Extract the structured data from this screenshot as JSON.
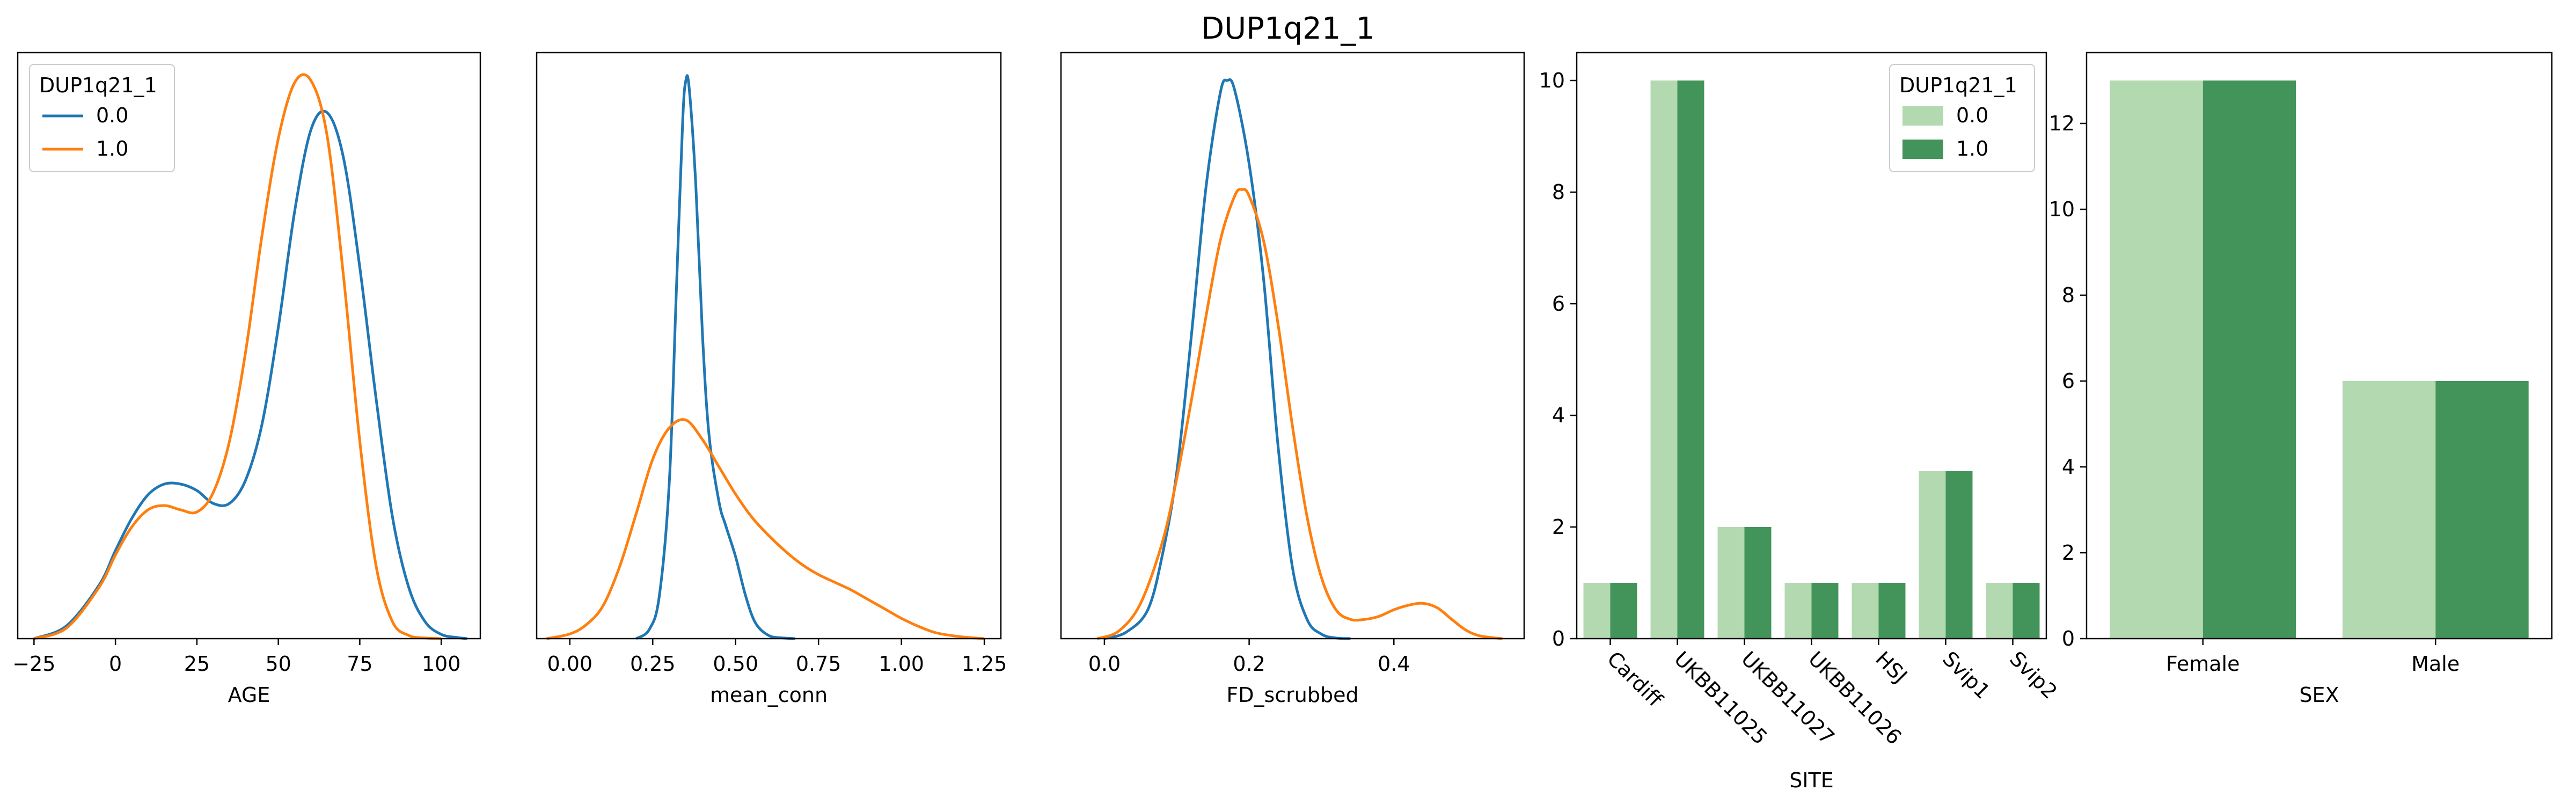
{
  "figure": {
    "title": "DUP1q21_1"
  },
  "colors": {
    "group0": "#1f77b4",
    "group1": "#ff7f0e",
    "bar0": "#b3d9b0",
    "bar1": "#43945a"
  },
  "chart_data": [
    {
      "type": "line",
      "subtype": "kde",
      "title": "",
      "xlabel": "AGE",
      "ylabel": "",
      "xlim": [
        -30,
        112
      ],
      "xticks": [
        -25,
        0,
        25,
        50,
        75,
        100
      ],
      "tick_labels": [
        "−25",
        "0",
        "25",
        "50",
        "75",
        "100"
      ],
      "show_yaxis": false,
      "legend": {
        "title": "DUP1q21_1",
        "position": "upper left",
        "entries": [
          "0.0",
          "1.0"
        ]
      },
      "series": [
        {
          "name": "0.0",
          "color": "#1f77b4",
          "x": [
            -25,
            -15,
            -5,
            0,
            5,
            10,
            15,
            20,
            25,
            30,
            35,
            40,
            45,
            50,
            55,
            60,
            65,
            70,
            75,
            80,
            85,
            90,
            95,
            100,
            105,
            108
          ],
          "y": [
            0.0,
            0.06,
            0.25,
            0.41,
            0.56,
            0.67,
            0.72,
            0.72,
            0.69,
            0.63,
            0.63,
            0.74,
            1.0,
            1.45,
            1.99,
            2.37,
            2.45,
            2.24,
            1.73,
            1.12,
            0.57,
            0.24,
            0.08,
            0.02,
            0.005,
            0.0
          ]
        },
        {
          "name": "1.0",
          "color": "#ff7f0e",
          "x": [
            -25,
            -15,
            -5,
            0,
            5,
            10,
            15,
            20,
            25,
            30,
            35,
            40,
            45,
            50,
            55,
            60,
            65,
            70,
            75,
            80,
            85,
            90,
            95,
            100
          ],
          "y": [
            0.0,
            0.05,
            0.24,
            0.39,
            0.52,
            0.6,
            0.62,
            0.6,
            0.59,
            0.68,
            0.92,
            1.34,
            1.88,
            2.33,
            2.59,
            2.6,
            2.34,
            1.69,
            0.92,
            0.34,
            0.08,
            0.015,
            0.003,
            0.0
          ]
        }
      ]
    },
    {
      "type": "line",
      "subtype": "kde",
      "title": "",
      "xlabel": "mean_conn",
      "ylabel": "",
      "xlim": [
        -0.1,
        1.3
      ],
      "xticks": [
        0.0,
        0.25,
        0.5,
        0.75,
        1.0,
        1.25
      ],
      "tick_labels": [
        "0.00",
        "0.25",
        "0.50",
        "0.75",
        "1.00",
        "1.25"
      ],
      "show_yaxis": false,
      "series": [
        {
          "name": "0.0",
          "color": "#1f77b4",
          "x": [
            0.2,
            0.24,
            0.27,
            0.3,
            0.32,
            0.34,
            0.35,
            0.36,
            0.38,
            0.4,
            0.42,
            0.45,
            0.47,
            0.5,
            0.53,
            0.56,
            0.6,
            0.64,
            0.68
          ],
          "y": [
            0.0,
            0.12,
            0.55,
            2.0,
            4.3,
            6.6,
            7.15,
            7.05,
            5.8,
            3.9,
            2.6,
            1.75,
            1.45,
            1.05,
            0.55,
            0.2,
            0.04,
            0.01,
            0.0
          ]
        },
        {
          "name": "1.0",
          "color": "#ff7f0e",
          "x": [
            -0.07,
            0.0,
            0.05,
            0.1,
            0.15,
            0.2,
            0.25,
            0.3,
            0.35,
            0.4,
            0.45,
            0.5,
            0.55,
            0.6,
            0.65,
            0.7,
            0.75,
            0.8,
            0.85,
            0.9,
            0.95,
            1.0,
            1.05,
            1.1,
            1.15,
            1.2,
            1.25
          ],
          "y": [
            0.0,
            0.06,
            0.18,
            0.42,
            0.92,
            1.6,
            2.3,
            2.7,
            2.8,
            2.55,
            2.2,
            1.85,
            1.55,
            1.32,
            1.12,
            0.95,
            0.82,
            0.72,
            0.62,
            0.5,
            0.38,
            0.26,
            0.16,
            0.08,
            0.04,
            0.015,
            0.0
          ]
        }
      ]
    },
    {
      "type": "line",
      "subtype": "kde",
      "title": "",
      "xlabel": "FD_scrubbed",
      "ylabel": "",
      "xlim": [
        -0.06,
        0.58
      ],
      "xticks": [
        0.0,
        0.2,
        0.4
      ],
      "tick_labels": [
        "0.0",
        "0.2",
        "0.4"
      ],
      "show_yaxis": false,
      "series": [
        {
          "name": "0.0",
          "color": "#1f77b4",
          "x": [
            0.0,
            0.03,
            0.06,
            0.08,
            0.1,
            0.12,
            0.14,
            0.16,
            0.17,
            0.18,
            0.2,
            0.22,
            0.24,
            0.26,
            0.28,
            0.3,
            0.32,
            0.34
          ],
          "y": [
            0.0,
            0.1,
            0.45,
            1.3,
            2.6,
            4.7,
            7.0,
            8.5,
            8.7,
            8.55,
            7.4,
            5.6,
            3.0,
            1.1,
            0.3,
            0.07,
            0.01,
            0.0
          ]
        },
        {
          "name": "1.0",
          "color": "#ff7f0e",
          "x": [
            -0.01,
            0.02,
            0.05,
            0.08,
            0.1,
            0.12,
            0.14,
            0.16,
            0.18,
            0.19,
            0.2,
            0.22,
            0.24,
            0.26,
            0.28,
            0.3,
            0.32,
            0.34,
            0.36,
            0.38,
            0.4,
            0.42,
            0.44,
            0.46,
            0.48,
            0.5,
            0.52,
            0.55
          ],
          "y": [
            0.0,
            0.12,
            0.55,
            1.5,
            2.5,
            3.7,
            5.0,
            6.2,
            6.9,
            7.0,
            6.9,
            6.2,
            4.9,
            3.3,
            1.9,
            0.95,
            0.45,
            0.3,
            0.3,
            0.35,
            0.45,
            0.52,
            0.55,
            0.48,
            0.3,
            0.13,
            0.04,
            0.0
          ]
        }
      ]
    },
    {
      "type": "bar",
      "title": "",
      "xlabel": "SITE",
      "ylabel": "",
      "ylim": [
        0,
        10.5
      ],
      "yticks": [
        0,
        2,
        4,
        6,
        8,
        10
      ],
      "categories": [
        "Cardiff",
        "UKBB11025",
        "UKBB11027",
        "UKBB11026",
        "HSJ",
        "Svip1",
        "Svip2"
      ],
      "tick_rotation": -45,
      "legend": {
        "title": "DUP1q21_1",
        "position": "upper right",
        "entries": [
          "0.0",
          "1.0"
        ]
      },
      "series": [
        {
          "name": "0.0",
          "color": "#b3d9b0",
          "values": [
            1,
            10,
            2,
            1,
            1,
            3,
            1
          ]
        },
        {
          "name": "1.0",
          "color": "#43945a",
          "values": [
            1,
            10,
            2,
            1,
            1,
            3,
            1
          ]
        }
      ]
    },
    {
      "type": "bar",
      "title": "",
      "xlabel": "SEX",
      "ylabel": "",
      "ylim": [
        0,
        13.65
      ],
      "yticks": [
        0,
        2,
        4,
        6,
        8,
        10,
        12
      ],
      "categories": [
        "Female",
        "Male"
      ],
      "tick_rotation": 0,
      "series": [
        {
          "name": "0.0",
          "color": "#b3d9b0",
          "values": [
            13,
            6
          ]
        },
        {
          "name": "1.0",
          "color": "#43945a",
          "values": [
            13,
            6
          ]
        }
      ]
    }
  ]
}
